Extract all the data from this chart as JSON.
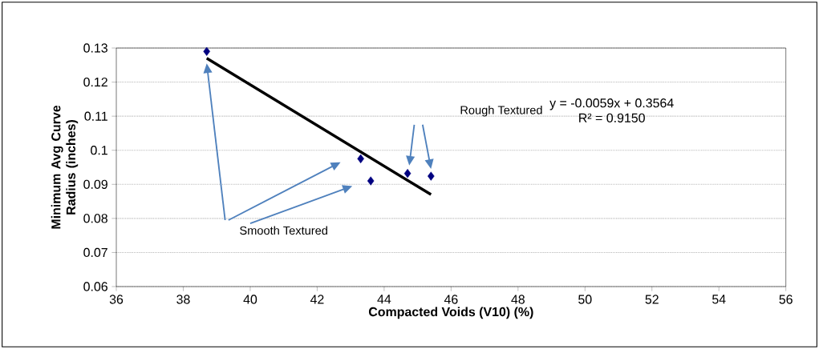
{
  "chart_data": {
    "type": "scatter",
    "xlabel": "Compacted Voids (V10) (%)",
    "ylabel": "Minimum Avg Curve Radius (inches)",
    "annotations": [
      "Rough Textured",
      "Smooth Textured",
      "y = -0.0059x + 0.3564",
      "R² = 0.9150"
    ],
    "xlim": [
      36,
      56
    ],
    "ylim": [
      0.06,
      0.13
    ],
    "xticks": [
      36,
      38,
      40,
      42,
      44,
      46,
      48,
      50,
      52,
      54,
      56
    ],
    "yticks": [
      0.06,
      0.07,
      0.08,
      0.09,
      0.1,
      0.11,
      0.12,
      0.13
    ],
    "grid": "y",
    "marker": "diamond",
    "series": [
      {
        "x": [
          38.7,
          43.3,
          43.6,
          44.7,
          45.4
        ],
        "values": [
          0.129,
          0.0975,
          0.091,
          0.0932,
          0.0924
        ],
        "color": "#000080"
      },
      {
        "type": "line",
        "x": [
          38.7,
          45.4
        ],
        "values": [
          0.127,
          0.087
        ],
        "color": "#000000",
        "marker": "none"
      }
    ]
  }
}
